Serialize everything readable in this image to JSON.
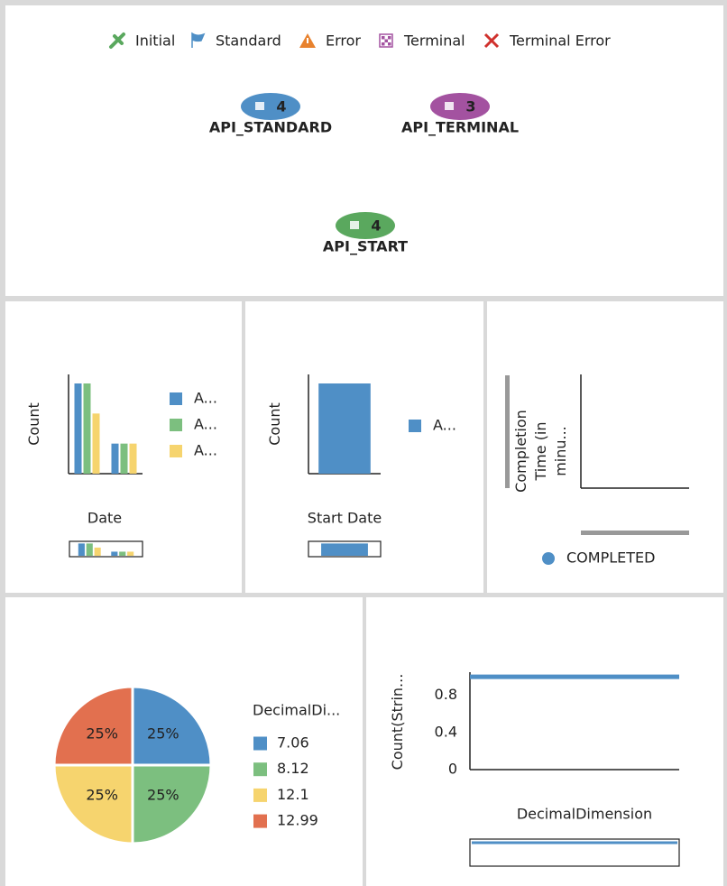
{
  "legend": [
    "Initial",
    "Standard",
    "Error",
    "Terminal",
    "Terminal Error"
  ],
  "nodes": [
    {
      "label": "API_STANDARD",
      "count": 4,
      "color": "#4f8fc6"
    },
    {
      "label": "API_TERMINAL",
      "count": 3,
      "color": "#a352a0"
    },
    {
      "label": "API_START",
      "count": 4,
      "color": "#5aa85e"
    }
  ],
  "chart_data": [
    {
      "type": "bar",
      "y_label": "Count",
      "x_label": "Date",
      "categories": [
        null,
        null
      ],
      "series": [
        {
          "name": "A...",
          "color": "#4f8fc6",
          "values": [
            6,
            2
          ]
        },
        {
          "name": "A...",
          "color": "#7cbf7f",
          "values": [
            6,
            2
          ]
        },
        {
          "name": "A...",
          "color": "#f6d46e",
          "values": [
            4,
            2
          ]
        }
      ],
      "ylim": [
        0,
        6.6
      ]
    },
    {
      "type": "bar",
      "y_label": "Count",
      "x_label": "Start Date",
      "categories": [
        null
      ],
      "series": [
        {
          "name": "A...",
          "color": "#4f8fc6",
          "values": [
            5
          ]
        }
      ],
      "ylim": [
        0,
        5.5
      ]
    },
    {
      "type": "scatter",
      "y_label": "Completion Time (in minu...",
      "x": [],
      "series": [
        {
          "name": "COMPLETED",
          "color": "#4f8fc6",
          "values": []
        }
      ]
    },
    {
      "type": "pie",
      "legend_title": "DecimalDi...",
      "categories": [
        "7.06",
        "8.12",
        "12.1",
        "12.99"
      ],
      "values": [
        25,
        25,
        25,
        25
      ],
      "value_labels": [
        "25%",
        "25%",
        "25%",
        "25%"
      ],
      "colors": [
        "#4f8fc6",
        "#7cbf7f",
        "#f6d46e",
        "#e2704f"
      ]
    },
    {
      "type": "line",
      "y_label": "Count(Strin...",
      "x_label": "DecimalDimension",
      "categories": [
        null,
        null,
        null,
        null
      ],
      "values": [
        1,
        1,
        1,
        1
      ],
      "color": "#4f8fc6",
      "ylim": [
        0,
        1.05
      ],
      "yticks": [
        0,
        0.4,
        0.8
      ]
    }
  ]
}
